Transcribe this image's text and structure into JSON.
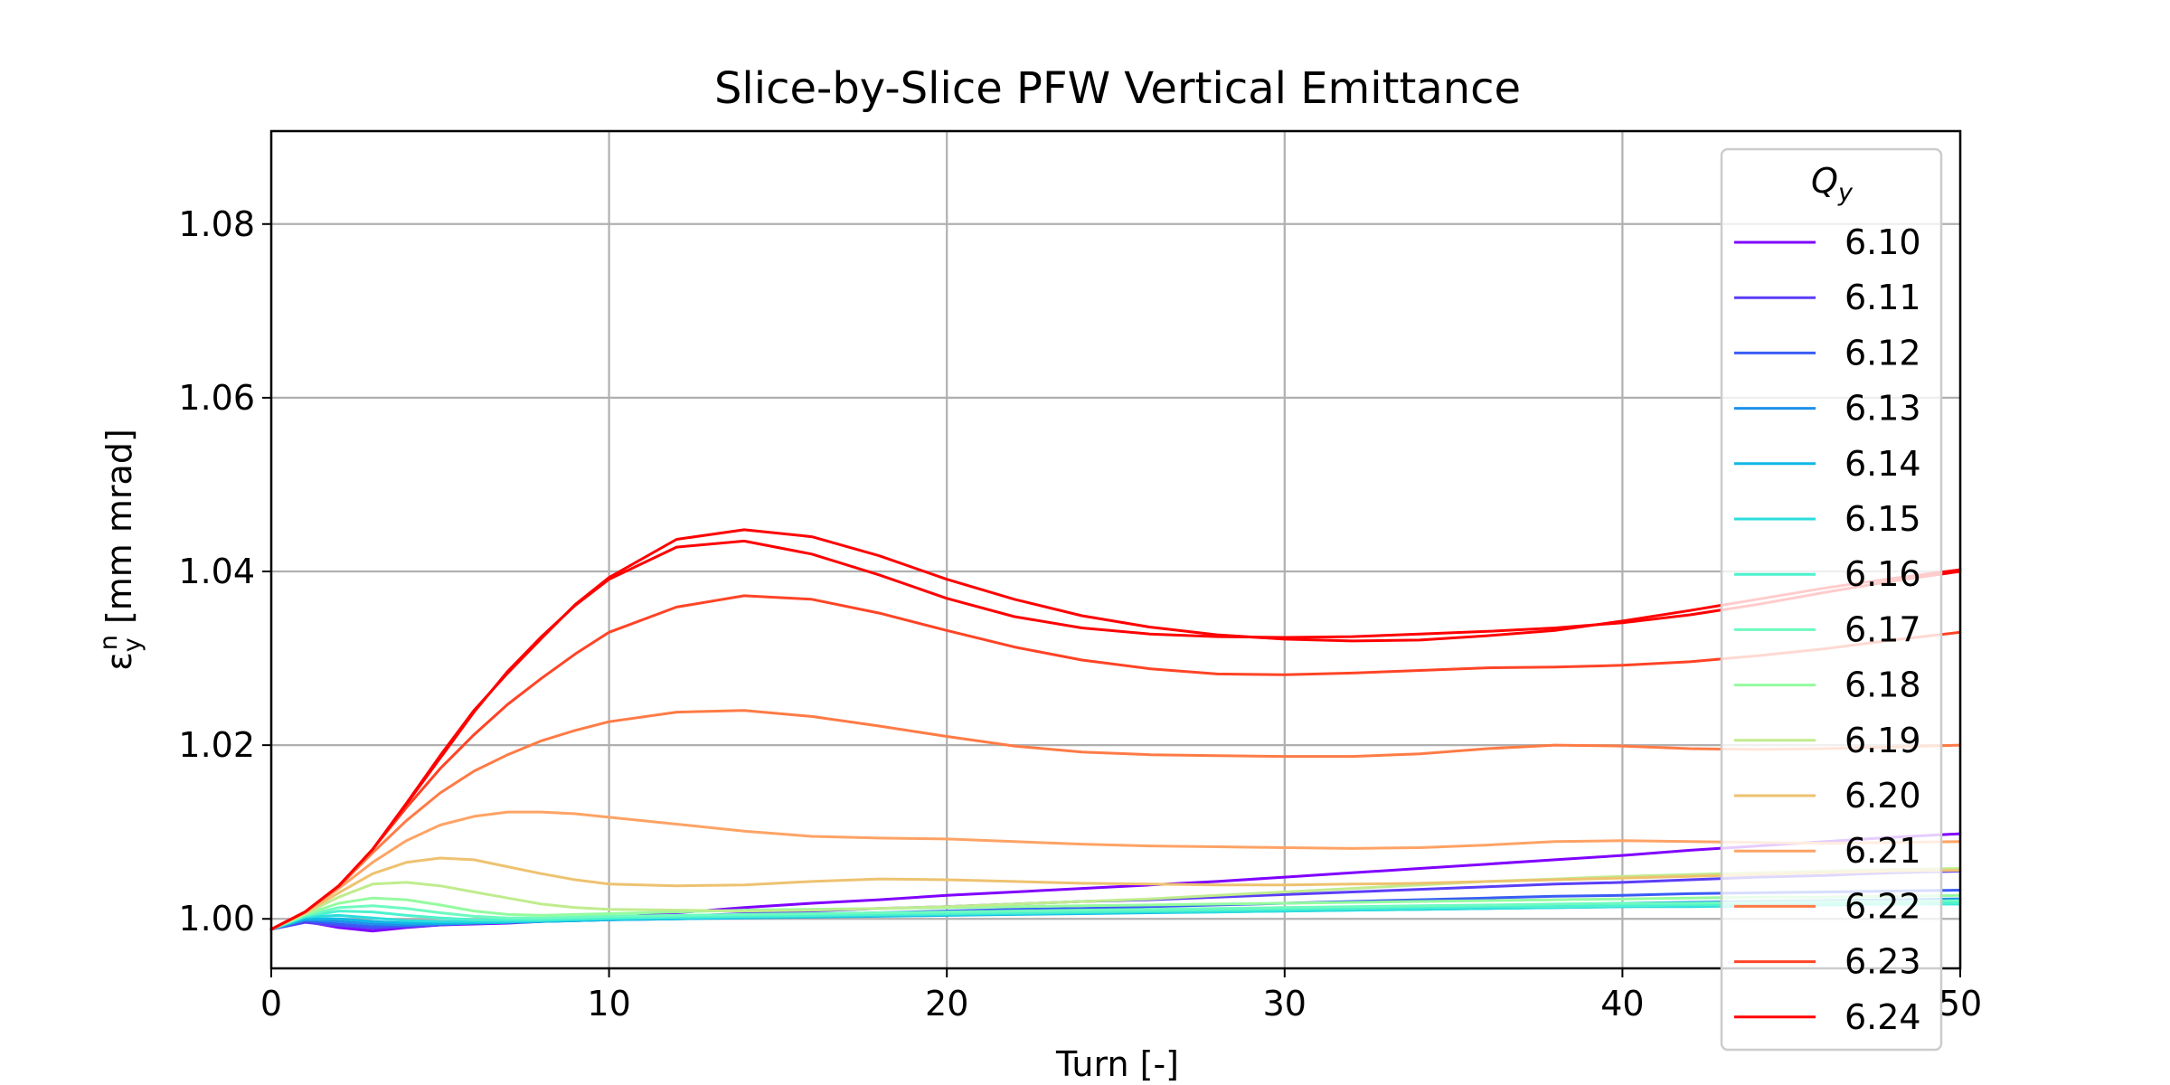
{
  "chart_data": {
    "type": "line",
    "title": "Slice-by-Slice PFW Vertical Emittance",
    "xlabel": "Turn [-]",
    "ylabel": "εyn [mm mrad]",
    "ylabel_parts": {
      "symbol": "ε",
      "sub": "y",
      "sup": "n",
      "rest": " [mm mrad]"
    },
    "xlim": [
      0,
      50
    ],
    "ylim": [
      0.9943,
      1.0907
    ],
    "xticks": [
      "0",
      "10",
      "20",
      "30",
      "40",
      "50"
    ],
    "xtick_values": [
      0,
      10,
      20,
      30,
      40,
      50
    ],
    "yticks": [
      "1.00",
      "1.02",
      "1.04",
      "1.06",
      "1.08"
    ],
    "ytick_values": [
      1.0,
      1.02,
      1.04,
      1.06,
      1.08
    ],
    "grid": true,
    "legend": {
      "title": "Qy",
      "title_parts": {
        "base": "Q",
        "sub": "y"
      },
      "placement": "upper-right"
    },
    "x": [
      0,
      1,
      2,
      3,
      4,
      5,
      6,
      7,
      8,
      9,
      10,
      12,
      14,
      16,
      18,
      20,
      22,
      24,
      26,
      28,
      30,
      32,
      34,
      36,
      38,
      40,
      42,
      44,
      46,
      48,
      50
    ],
    "series": [
      {
        "name": "6.10",
        "color": "#8000ff",
        "values": [
          0.9988,
          0.9997,
          0.999,
          0.9986,
          0.999,
          0.9993,
          0.9994,
          0.9995,
          0.9997,
          0.9999,
          1.0001,
          1.0007,
          1.0013,
          1.0018,
          1.0022,
          1.0027,
          1.0031,
          1.0035,
          1.0039,
          1.0043,
          1.0048,
          1.0053,
          1.0058,
          1.0063,
          1.0068,
          1.0073,
          1.0079,
          1.0084,
          1.0089,
          1.0094,
          1.0098
        ]
      },
      {
        "name": "6.11",
        "color": "#5a3ef7",
        "values": [
          0.9988,
          0.9996,
          0.9992,
          0.9989,
          0.9991,
          0.9993,
          0.9995,
          0.9996,
          0.9998,
          0.9999,
          1.0,
          1.0003,
          1.0006,
          1.0009,
          1.0012,
          1.0014,
          1.0017,
          1.002,
          1.0022,
          1.0025,
          1.0028,
          1.0031,
          1.0034,
          1.0037,
          1.004,
          1.0042,
          1.0045,
          1.0048,
          1.005,
          1.0053,
          1.0055
        ]
      },
      {
        "name": "6.12",
        "color": "#3a5cf5",
        "values": [
          0.9988,
          0.9998,
          0.9994,
          0.9991,
          0.9992,
          0.9994,
          0.9995,
          0.9996,
          0.9997,
          0.9998,
          0.9999,
          1.0001,
          1.0003,
          1.0005,
          1.0007,
          1.0009,
          1.0011,
          1.0012,
          1.0014,
          1.0016,
          1.0018,
          1.002,
          1.0022,
          1.0024,
          1.0026,
          1.0027,
          1.0029,
          1.003,
          1.0031,
          1.0032,
          1.0033
        ]
      },
      {
        "name": "6.13",
        "color": "#1e90ea",
        "values": [
          0.9988,
          0.9999,
          0.9997,
          0.9994,
          0.9993,
          0.9994,
          0.9995,
          0.9996,
          0.9997,
          0.9998,
          0.9999,
          1.0,
          1.0002,
          1.0003,
          1.0004,
          1.0005,
          1.0007,
          1.0008,
          1.0009,
          1.001,
          1.0011,
          1.0013,
          1.0014,
          1.0015,
          1.0016,
          1.0018,
          1.0019,
          1.002,
          1.0021,
          1.0022,
          1.0023
        ]
      },
      {
        "name": "6.14",
        "color": "#10b7e5",
        "values": [
          0.9988,
          1.0,
          1.0,
          0.9997,
          0.9995,
          0.9995,
          0.9995,
          0.9996,
          0.9997,
          0.9998,
          0.9999,
          1.0,
          1.0001,
          1.0002,
          1.0003,
          1.0004,
          1.0005,
          1.0006,
          1.0007,
          1.0008,
          1.0009,
          1.001,
          1.0011,
          1.0012,
          1.0013,
          1.0014,
          1.0015,
          1.0016,
          1.0017,
          1.0018,
          1.0019
        ]
      },
      {
        "name": "6.15",
        "color": "#2adddd",
        "values": [
          0.9988,
          1.0002,
          1.0004,
          1.0001,
          0.9998,
          0.9997,
          0.9997,
          0.9997,
          0.9998,
          0.9999,
          1.0,
          1.0001,
          1.0002,
          1.0003,
          1.0004,
          1.0005,
          1.0006,
          1.0007,
          1.0008,
          1.0008,
          1.0009,
          1.001,
          1.0011,
          1.0012,
          1.0013,
          1.0014,
          1.0014,
          1.0015,
          1.0016,
          1.0017,
          1.0017
        ]
      },
      {
        "name": "6.16",
        "color": "#4cf2ce",
        "values": [
          0.9988,
          1.0003,
          1.0009,
          1.0008,
          1.0004,
          1.0001,
          0.9999,
          0.9999,
          0.9999,
          1.0,
          1.0001,
          1.0002,
          1.0003,
          1.0004,
          1.0005,
          1.0006,
          1.0007,
          1.0008,
          1.0009,
          1.001,
          1.0011,
          1.0012,
          1.0013,
          1.0014,
          1.0014,
          1.0015,
          1.0016,
          1.0016,
          1.0017,
          1.0017,
          1.0018
        ]
      },
      {
        "name": "6.17",
        "color": "#6efac0",
        "values": [
          0.9988,
          1.0004,
          1.0013,
          1.0015,
          1.0012,
          1.0007,
          1.0003,
          1.0001,
          1.0001,
          1.0002,
          1.0003,
          1.0004,
          1.0005,
          1.0006,
          1.0007,
          1.0008,
          1.0009,
          1.001,
          1.0011,
          1.0012,
          1.0013,
          1.0014,
          1.0015,
          1.0016,
          1.0017,
          1.0018,
          1.0018,
          1.0019,
          1.002,
          1.002,
          1.0021
        ]
      },
      {
        "name": "6.18",
        "color": "#94fb9f",
        "values": [
          0.9988,
          1.0005,
          1.0018,
          1.0024,
          1.0022,
          1.0016,
          1.0009,
          1.0005,
          1.0004,
          1.0005,
          1.0006,
          1.0008,
          1.001,
          1.0011,
          1.0012,
          1.0013,
          1.0014,
          1.0015,
          1.0016,
          1.0017,
          1.0018,
          1.0019,
          1.002,
          1.0021,
          1.0022,
          1.0023,
          1.0024,
          1.0025,
          1.0025,
          1.0026,
          1.0027
        ]
      },
      {
        "name": "6.19",
        "color": "#c0ec8e",
        "values": [
          0.9988,
          1.0006,
          1.0025,
          1.004,
          1.0042,
          1.0038,
          1.0031,
          1.0024,
          1.0017,
          1.0013,
          1.0011,
          1.001,
          1.0009,
          1.001,
          1.0012,
          1.0014,
          1.0017,
          1.002,
          1.0023,
          1.0027,
          1.0031,
          1.0035,
          1.0039,
          1.0043,
          1.0046,
          1.0049,
          1.0051,
          1.0053,
          1.0055,
          1.0057,
          1.0058
        ]
      },
      {
        "name": "6.20",
        "color": "#eec270",
        "values": [
          0.9988,
          1.0007,
          1.003,
          1.0052,
          1.0065,
          1.007,
          1.0068,
          1.006,
          1.0052,
          1.0045,
          1.004,
          1.0038,
          1.0039,
          1.0043,
          1.0046,
          1.0045,
          1.0043,
          1.0041,
          1.004,
          1.0039,
          1.0039,
          1.004,
          1.0041,
          1.0043,
          1.0045,
          1.0047,
          1.0049,
          1.0051,
          1.0053,
          1.0055,
          1.0056
        ]
      },
      {
        "name": "6.21",
        "color": "#fea365",
        "values": [
          0.9988,
          1.0008,
          1.0035,
          1.0065,
          1.009,
          1.0108,
          1.0118,
          1.0123,
          1.0123,
          1.0121,
          1.0117,
          1.0109,
          1.0101,
          1.0095,
          1.0093,
          1.0092,
          1.0089,
          1.0086,
          1.0084,
          1.0083,
          1.0082,
          1.0081,
          1.0082,
          1.0085,
          1.0089,
          1.009,
          1.0089,
          1.0088,
          1.0087,
          1.0088,
          1.0089
        ]
      },
      {
        "name": "6.22",
        "color": "#ff7b46",
        "values": [
          0.9988,
          1.0008,
          1.0037,
          1.0076,
          1.0113,
          1.0145,
          1.017,
          1.0189,
          1.0205,
          1.0217,
          1.0227,
          1.0238,
          1.024,
          1.0233,
          1.0222,
          1.021,
          1.0199,
          1.0192,
          1.0189,
          1.0188,
          1.0187,
          1.0187,
          1.019,
          1.0196,
          1.02,
          1.0199,
          1.0196,
          1.0195,
          1.0196,
          1.0198,
          1.02
        ]
      },
      {
        "name": "6.23",
        "color": "#ff4426",
        "values": [
          0.9988,
          1.0008,
          1.0038,
          1.008,
          1.0128,
          1.0173,
          1.0212,
          1.0247,
          1.0277,
          1.0305,
          1.033,
          1.0359,
          1.0372,
          1.0368,
          1.0352,
          1.0332,
          1.0313,
          1.0298,
          1.0288,
          1.0282,
          1.0281,
          1.0283,
          1.0286,
          1.0289,
          1.029,
          1.0292,
          1.0296,
          1.0303,
          1.0311,
          1.0321,
          1.033
        ]
      },
      {
        "name": "6.24",
        "color": "#ff0000",
        "values": [
          0.9988,
          1.0008,
          1.0038,
          1.008,
          1.0132,
          1.0185,
          1.0238,
          1.0285,
          1.0325,
          1.0361,
          1.0391,
          1.0428,
          1.0435,
          1.042,
          1.0396,
          1.0369,
          1.0348,
          1.0335,
          1.0328,
          1.0325,
          1.0324,
          1.0325,
          1.0328,
          1.0331,
          1.0335,
          1.0341,
          1.035,
          1.0362,
          1.0376,
          1.0389,
          1.04
        ]
      },
      {
        "name": "",
        "color": "#ff0000",
        "values": [
          0.9988,
          1.0008,
          1.0038,
          1.008,
          1.0133,
          1.0188,
          1.024,
          1.0283,
          1.0323,
          1.0362,
          1.0393,
          1.0437,
          1.0448,
          1.044,
          1.0418,
          1.0391,
          1.0368,
          1.0349,
          1.0336,
          1.0327,
          1.0322,
          1.032,
          1.0321,
          1.0326,
          1.0332,
          1.0343,
          1.0355,
          1.0368,
          1.0381,
          1.0392,
          1.0402
        ]
      }
    ]
  }
}
